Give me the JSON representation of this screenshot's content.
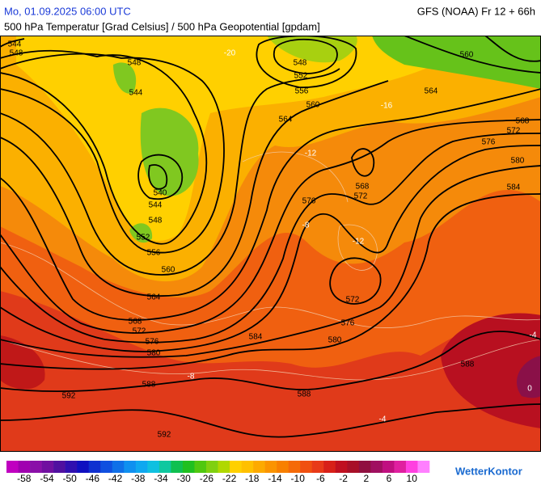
{
  "header": {
    "date": "Mo, 01.09.2025 06:00 UTC",
    "model": "GFS (NOAA) Fr 12 + 66h",
    "subtitle": "500 hPa Temperatur [Grad Celsius] / 500 hPa Geopotential [gpdam]"
  },
  "contour_labels": [
    "544",
    "548",
    "548",
    "544",
    "540",
    "544",
    "548",
    "552",
    "556",
    "560",
    "564",
    "568",
    "572",
    "576",
    "580",
    "584",
    "588",
    "592",
    "592",
    "588",
    "580",
    "576",
    "572",
    "576",
    "568",
    "572",
    "548",
    "552",
    "556",
    "560",
    "564",
    "564",
    "560",
    "568",
    "572",
    "576",
    "580",
    "584",
    "588"
  ],
  "temperature_labels": [
    "-20",
    "-16",
    "-12",
    "-8",
    "-12",
    "-8",
    "-4",
    "0",
    "-4"
  ],
  "legend": {
    "ticks": [
      -58,
      -54,
      -50,
      -46,
      -42,
      -38,
      -34,
      -30,
      -26,
      -22,
      -18,
      -14,
      -10,
      -6,
      -2,
      2,
      6,
      10
    ],
    "colors": [
      "#c000c0",
      "#a000b0",
      "#8a10a8",
      "#7010a0",
      "#5010a0",
      "#3010b0",
      "#1010c0",
      "#1030d0",
      "#1050e0",
      "#1070e8",
      "#1090f0",
      "#10a8f0",
      "#10c0e0",
      "#10c8a0",
      "#10c050",
      "#20c020",
      "#50c810",
      "#80d010",
      "#b0d800",
      "#ffd000",
      "#ffc000",
      "#fdaa00",
      "#fb9400",
      "#f88000",
      "#f56a08",
      "#f05010",
      "#e83a18",
      "#d82018",
      "#c01020",
      "#a81028",
      "#901040",
      "#a01060",
      "#c01080",
      "#e020a0",
      "#ff40e0",
      "#ff80ff"
    ]
  },
  "brand": "WetterKontor"
}
